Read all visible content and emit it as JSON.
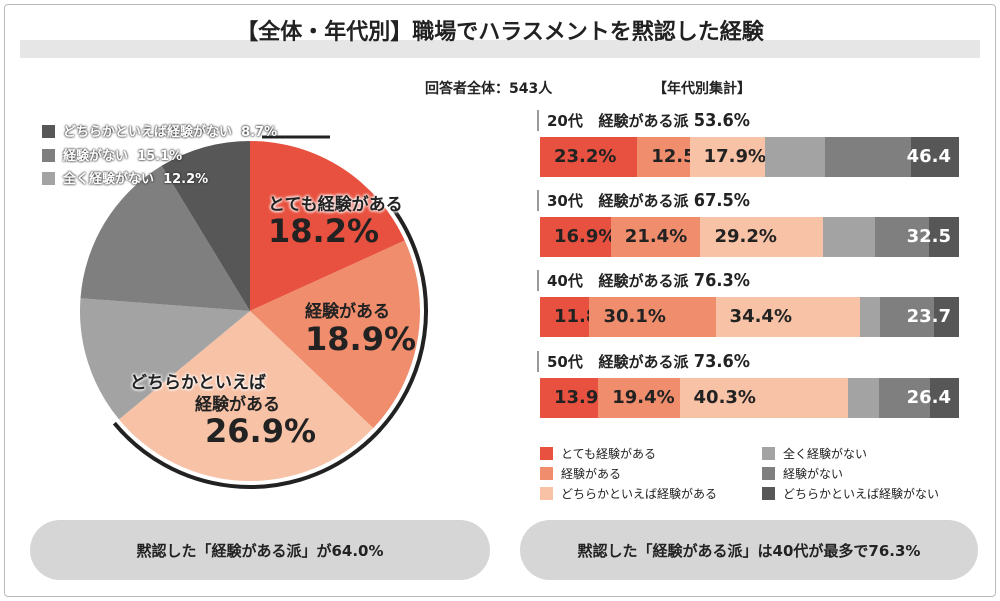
{
  "header": {
    "title": "【全体・年代別】職場でハラスメントを黙認した経験",
    "respondents": "回答者全体：543人",
    "by_age_label": "【年代別集計】"
  },
  "colors": {
    "very_experienced": "#e8513f",
    "experienced": "#ef8d6d",
    "somewhat_experienced": "#f7c2a6",
    "never": "#a3a3a3",
    "not_experienced": "#7f7f7f",
    "somewhat_not": "#575757"
  },
  "chart_data": [
    {
      "type": "pie",
      "title": "",
      "slices": [
        {
          "label": "とても経験がある",
          "value": 18.2,
          "display": "18.2%",
          "color": "#e8513f"
        },
        {
          "label": "経験がある",
          "value": 18.9,
          "display": "18.9%",
          "color": "#ef8d6d"
        },
        {
          "label": "どちらかといえば経験がある",
          "value": 26.9,
          "display": "26.9%",
          "color": "#f7c2a6"
        },
        {
          "label": "全く経験がない",
          "value": 12.2,
          "display": "12.2%",
          "color": "#a3a3a3"
        },
        {
          "label": "経験がない",
          "value": 15.1,
          "display": "15.1%",
          "color": "#7f7f7f"
        },
        {
          "label": "どちらかといえば経験がない",
          "value": 8.7,
          "display": "8.7%",
          "color": "#575757"
        }
      ],
      "pie_labels": {
        "s0a": "とても経験がある",
        "s1a": "経験がある",
        "s2a": "どちらかといえば",
        "s2b": "経験がある"
      },
      "legend": [
        {
          "label": "どちらかといえば経験がない",
          "value": "8.7%",
          "color": "#575757"
        },
        {
          "label": "経験がない",
          "value": "15.1%",
          "color": "#7f7f7f"
        },
        {
          "label": "全く経験がない",
          "value": "12.2%",
          "color": "#a3a3a3"
        }
      ]
    },
    {
      "type": "bar",
      "orientation": "horizontal",
      "stacked": true,
      "xlim": [
        0,
        100
      ],
      "categories": [
        "20代",
        "30代",
        "40代",
        "50代"
      ],
      "group_label": "経験がある派",
      "experienced_totals": [
        "53.6%",
        "67.5%",
        "76.3%",
        "73.6%"
      ],
      "not_experienced_totals": [
        "46.4",
        "32.5",
        "23.7",
        "26.4"
      ],
      "series": [
        {
          "name": "とても経験がある",
          "values": [
            23.2,
            16.9,
            11.8,
            13.9
          ],
          "color": "#e8513f"
        },
        {
          "name": "経験がある",
          "values": [
            12.5,
            21.4,
            30.1,
            19.4
          ],
          "color": "#ef8d6d"
        },
        {
          "name": "どちらかといえば経験がある",
          "values": [
            17.9,
            29.2,
            34.4,
            40.3
          ],
          "color": "#f7c2a6"
        },
        {
          "name": "全く経験がない",
          "values": [
            14.5,
            12.4,
            4.8,
            7.4
          ],
          "color": "#a3a3a3"
        },
        {
          "name": "経験がない",
          "values": [
            20.5,
            13.0,
            13.0,
            12.0
          ],
          "color": "#7f7f7f"
        },
        {
          "name": "どちらかといえば経験がない",
          "values": [
            11.4,
            7.1,
            5.9,
            7.0
          ],
          "color": "#575757"
        }
      ],
      "legend": [
        "とても経験がある",
        "経験がある",
        "どちらかといえば経験がある",
        "全く経験がない",
        "経験がない",
        "どちらかといえば経験がない"
      ]
    }
  ],
  "summary": {
    "left": "黙認した「経験がある派」が64.0%",
    "right": "黙認した「経験がある派」は40代が最多で76.3%"
  }
}
